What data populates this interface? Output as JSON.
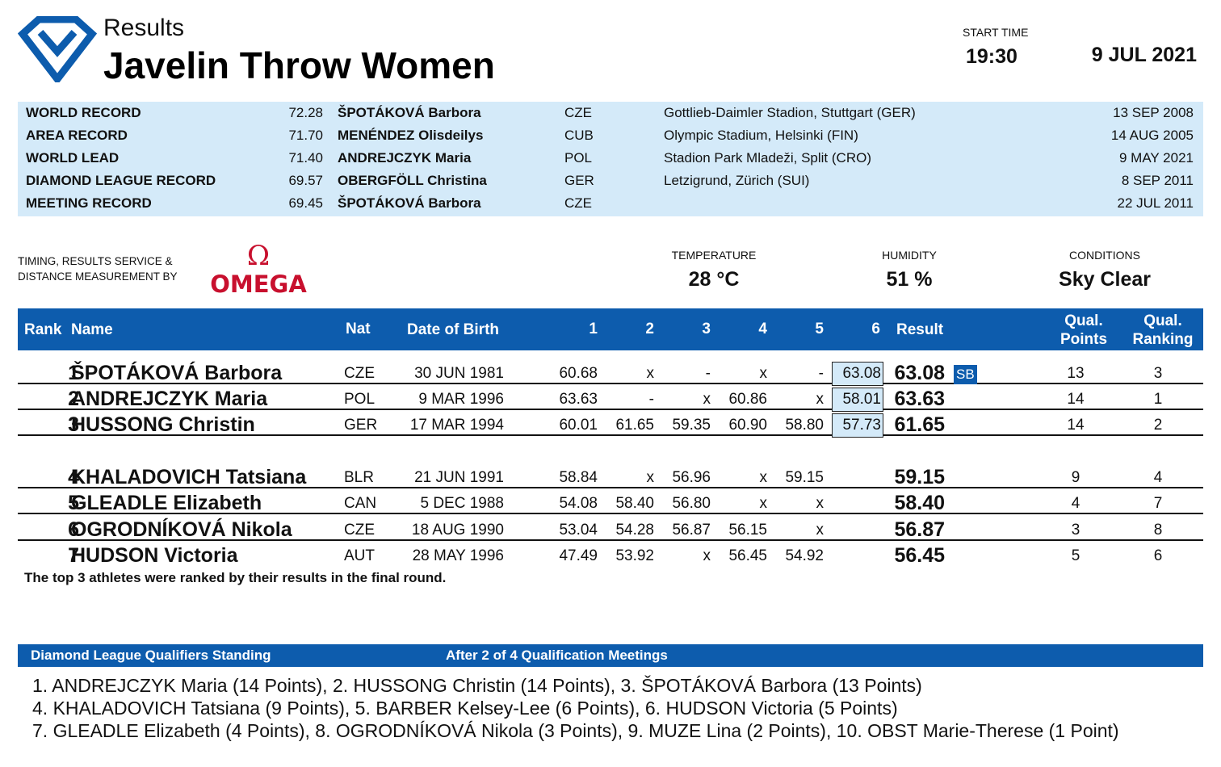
{
  "header": {
    "results_label": "Results",
    "event_title": "Javelin Throw Women",
    "start_time_label": "START TIME",
    "start_time": "19:30",
    "date": "9 JUL 2021",
    "logo_icon": "diamond-league-logo"
  },
  "records": [
    {
      "type": "WORLD RECORD",
      "mark": "72.28",
      "athlete": "ŠPOTÁKOVÁ Barbora",
      "nat": "CZE",
      "venue": "Gottlieb-Daimler Stadion, Stuttgart (GER)",
      "date": "13 SEP 2008"
    },
    {
      "type": "AREA RECORD",
      "mark": "71.70",
      "athlete": "MENÉNDEZ Olisdeilys",
      "nat": "CUB",
      "venue": "Olympic Stadium, Helsinki (FIN)",
      "date": "14 AUG 2005"
    },
    {
      "type": "WORLD LEAD",
      "mark": "71.40",
      "athlete": "ANDREJCZYK Maria",
      "nat": "POL",
      "venue": "Stadion Park Mladeži, Split (CRO)",
      "date": "9 MAY 2021"
    },
    {
      "type": "DIAMOND LEAGUE RECORD",
      "mark": "69.57",
      "athlete": "OBERGFÖLL Christina",
      "nat": "GER",
      "venue": "Letzigrund, Zürich (SUI)",
      "date": "8 SEP 2011"
    },
    {
      "type": "MEETING RECORD",
      "mark": "69.45",
      "athlete": "ŠPOTÁKOVÁ Barbora",
      "nat": "CZE",
      "venue": "",
      "date": "22 JUL 2011"
    }
  ],
  "timing": {
    "line1": "TIMING, RESULTS SERVICE &",
    "line2": "DISTANCE MEASUREMENT BY",
    "brand": "OMEGA"
  },
  "weather": {
    "temperature_label": "TEMPERATURE",
    "temperature": "28 °C",
    "humidity_label": "HUMIDITY",
    "humidity": "51 %",
    "conditions_label": "CONDITIONS",
    "conditions": "Sky Clear"
  },
  "table": {
    "headers": {
      "rank": "Rank",
      "name": "Name",
      "nat": "Nat",
      "dob": "Date of Birth",
      "a1": "1",
      "a2": "2",
      "a3": "3",
      "a4": "4",
      "a5": "5",
      "a6": "6",
      "result": "Result",
      "qual_points_1": "Qual.",
      "qual_points_2": "Points",
      "qual_ranking_1": "Qual.",
      "qual_ranking_2": "Ranking"
    },
    "rows": [
      {
        "rank": "1",
        "name": "ŠPOTÁKOVÁ Barbora",
        "nat": "CZE",
        "dob": "30 JUN 1981",
        "attempts": [
          "60.68",
          "x",
          "-",
          "x",
          "-",
          "63.08"
        ],
        "result": "63.08",
        "badge": "SB",
        "qual_points": "13",
        "qual_ranking": "3"
      },
      {
        "rank": "2",
        "name": "ANDREJCZYK Maria",
        "nat": "POL",
        "dob": "9 MAR 1996",
        "attempts": [
          "63.63",
          "-",
          "x",
          "60.86",
          "x",
          "58.01"
        ],
        "result": "63.63",
        "badge": "",
        "qual_points": "14",
        "qual_ranking": "1"
      },
      {
        "rank": "3",
        "name": "HUSSONG Christin",
        "nat": "GER",
        "dob": "17 MAR 1994",
        "attempts": [
          "60.01",
          "61.65",
          "59.35",
          "60.90",
          "58.80",
          "57.73"
        ],
        "result": "61.65",
        "badge": "",
        "qual_points": "14",
        "qual_ranking": "2"
      },
      {
        "rank": "4",
        "name": "KHALADOVICH Tatsiana",
        "nat": "BLR",
        "dob": "21 JUN 1991",
        "attempts": [
          "58.84",
          "x",
          "56.96",
          "x",
          "59.15",
          ""
        ],
        "result": "59.15",
        "badge": "",
        "qual_points": "9",
        "qual_ranking": "4"
      },
      {
        "rank": "5",
        "name": "GLEADLE Elizabeth",
        "nat": "CAN",
        "dob": "5 DEC 1988",
        "attempts": [
          "54.08",
          "58.40",
          "56.80",
          "x",
          "x",
          ""
        ],
        "result": "58.40",
        "badge": "",
        "qual_points": "4",
        "qual_ranking": "7"
      },
      {
        "rank": "6",
        "name": "OGRODNÍKOVÁ Nikola",
        "nat": "CZE",
        "dob": "18 AUG 1990",
        "attempts": [
          "53.04",
          "54.28",
          "56.87",
          "56.15",
          "x",
          ""
        ],
        "result": "56.87",
        "badge": "",
        "qual_points": "3",
        "qual_ranking": "8"
      },
      {
        "rank": "7",
        "name": "HUDSON Victoria",
        "nat": "AUT",
        "dob": "28 MAY 1996",
        "attempts": [
          "47.49",
          "53.92",
          "x",
          "56.45",
          "54.92",
          ""
        ],
        "result": "56.45",
        "badge": "",
        "qual_points": "5",
        "qual_ranking": "6"
      }
    ],
    "footnote": "The top 3 athletes were ranked by their results in the final round."
  },
  "standings": {
    "title": "Diamond League Qualifiers Standing",
    "subtitle": "After 2 of 4 Qualification Meetings",
    "lines": [
      "1. ANDREJCZYK Maria (14 Points), 2. HUSSONG Christin (14 Points), 3. ŠPOTÁKOVÁ Barbora (13 Points)",
      "4. KHALADOVICH Tatsiana (9 Points), 5. BARBER Kelsey-Lee (6 Points), 6. HUDSON Victoria (5 Points)",
      "7. GLEADLE Elizabeth (4 Points), 8. OGRODNÍKOVÁ Nikola (3 Points), 9. MUZE Lina (2 Points), 10. OBST Marie-Therese (1 Point)"
    ]
  },
  "colors": {
    "header_blue": "#0d5cad",
    "light_blue": "#d4eaf9",
    "omega_red": "#c8102e"
  }
}
